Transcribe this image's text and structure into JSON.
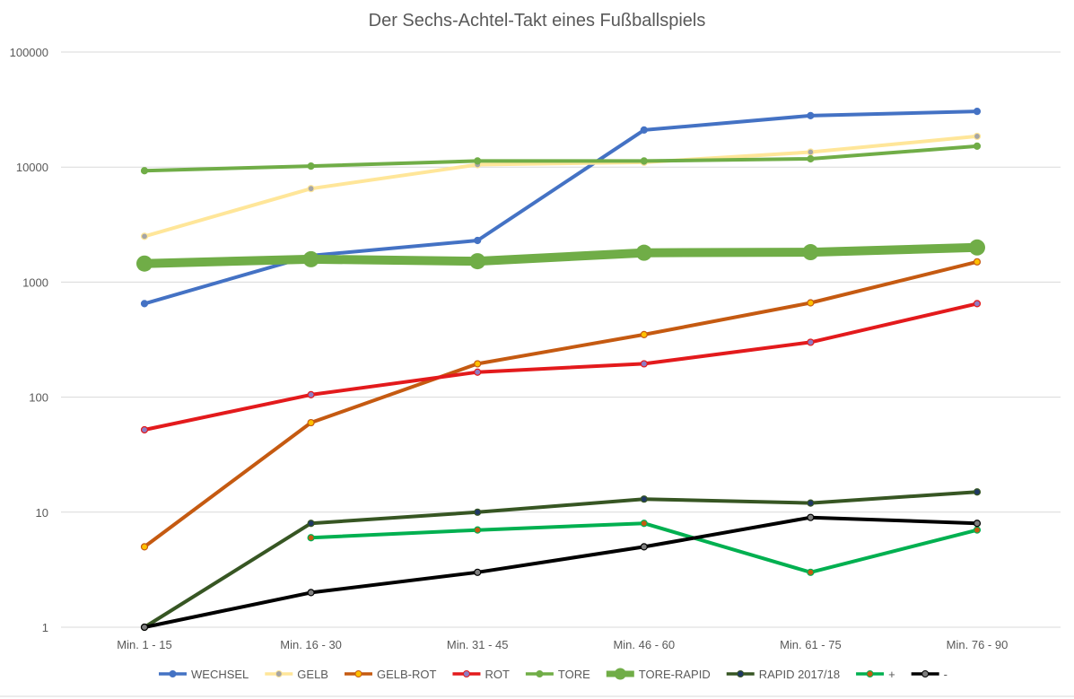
{
  "chart_data": {
    "type": "line",
    "title": "Der Sechs-Achtel-Takt eines Fußballspiels",
    "xlabel": "",
    "ylabel": "",
    "yscale": "log",
    "ylim": [
      1,
      100000
    ],
    "yticks": [
      "1",
      "10",
      "100",
      "1000",
      "10000",
      "100000"
    ],
    "grid": true,
    "legend_position": "bottom",
    "categories": [
      "Min.  1 - 15",
      "Min. 16 - 30",
      "Min. 31 - 45",
      "Min. 46 - 60",
      "Min. 61 - 75",
      "Min. 76 - 90"
    ],
    "series": [
      {
        "name": "WECHSEL",
        "color": "#4472c4",
        "line": "medium",
        "marker_fill": "#4472c4",
        "values": [
          650,
          1700,
          2300,
          21000,
          28000,
          30500
        ]
      },
      {
        "name": "GELB",
        "color": "#ffe699",
        "line": "medium",
        "marker_fill": "#a5a5a5",
        "values": [
          2500,
          6500,
          10500,
          11000,
          13500,
          18500
        ]
      },
      {
        "name": "GELB-ROT",
        "color": "#c55a11",
        "line": "medium",
        "marker_fill": "#ffc000",
        "values": [
          5,
          60,
          195,
          350,
          660,
          1500
        ]
      },
      {
        "name": "ROT",
        "color": "#e31a1c",
        "line": "medium",
        "marker_fill": "#8e7cc3",
        "values": [
          52,
          105,
          165,
          195,
          300,
          650
        ]
      },
      {
        "name": "TORE",
        "color": "#70ad47",
        "line": "medium",
        "marker_fill": "#70ad47",
        "values": [
          9300,
          10200,
          11300,
          11300,
          11800,
          15200
        ]
      },
      {
        "name": "TORE-RAPID",
        "color": "#70ad47",
        "line": "thick",
        "marker_fill": "#70ad47",
        "values": [
          1450,
          1580,
          1520,
          1800,
          1820,
          2000
        ]
      },
      {
        "name": "RAPID 2017/18",
        "color": "#375623",
        "line": "medium",
        "marker_fill": "#1f3864",
        "values": [
          1,
          8,
          10,
          13,
          12,
          15
        ]
      },
      {
        "name": "+",
        "color": "#00b050",
        "line": "medium",
        "marker_fill": "#c55a11",
        "values": [
          null,
          6,
          7,
          8,
          3,
          7
        ]
      },
      {
        "name": "-",
        "color": "#000000",
        "line": "medium",
        "marker_fill": "#7f7f7f",
        "values": [
          1,
          2,
          3,
          5,
          9,
          8
        ]
      }
    ]
  }
}
